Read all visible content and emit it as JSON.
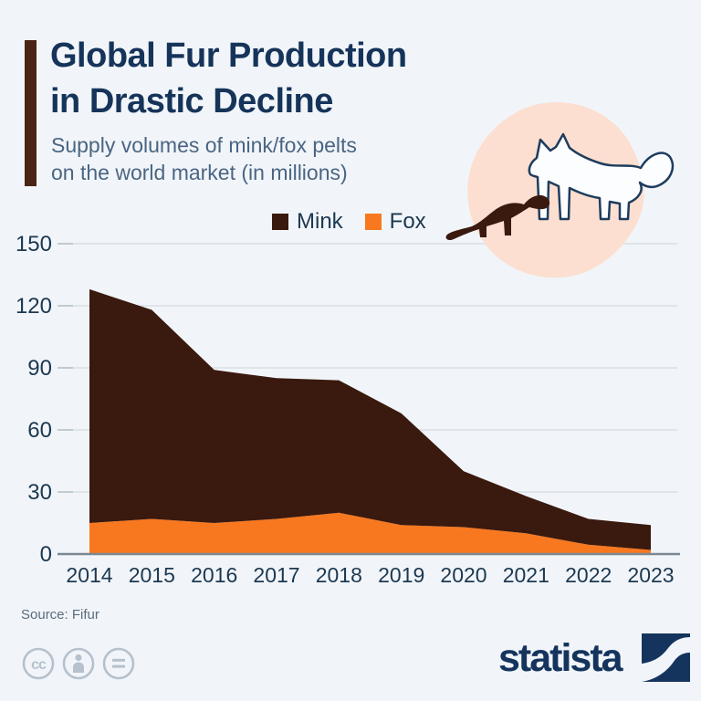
{
  "header": {
    "title_line1": "Global Fur Production",
    "title_line2": "in Drastic Decline",
    "subtitle_line1": "Supply volumes of mink/fox pelts",
    "subtitle_line2": "on the world market (in millions)"
  },
  "legend": {
    "items": [
      {
        "label": "Mink",
        "color": "#3a190e"
      },
      {
        "label": "Fox",
        "color": "#f8781f"
      }
    ]
  },
  "chart_data": {
    "type": "area",
    "stacked": true,
    "title": "Supply volumes of mink/fox pelts on the world market (in millions)",
    "x": [
      2014,
      2015,
      2016,
      2017,
      2018,
      2019,
      2020,
      2021,
      2022,
      2023
    ],
    "series": [
      {
        "name": "Fox",
        "color": "#f8781f",
        "values": [
          15,
          17,
          15,
          17,
          20,
          14,
          13,
          10,
          4.5,
          2
        ]
      },
      {
        "name": "Mink",
        "color": "#3a190e",
        "values": [
          113,
          101,
          74,
          68,
          64,
          54,
          27,
          18,
          12.5,
          12
        ]
      }
    ],
    "totals": [
      128,
      118,
      89,
      85,
      84,
      68,
      40,
      28,
      17,
      14
    ],
    "xlabel": "",
    "ylabel": "",
    "ylim": [
      0,
      150
    ],
    "yticks": [
      0,
      30,
      60,
      90,
      120,
      150
    ],
    "grid": true,
    "legend_position": "top"
  },
  "footer": {
    "source": "Source: Fifur",
    "brand": "statista",
    "license_icons": [
      "cc",
      "attribution",
      "equal"
    ]
  },
  "colors": {
    "background": "#f1f5f9",
    "title": "#16345a",
    "subtitle": "#4a6583",
    "accent_bar": "#4a2414",
    "gridline": "#d9dee3",
    "tick": "#b4bfc9",
    "axis": "#7b8894",
    "axis_label": "#1c3850",
    "blob": "#fcdfd0",
    "fox_outline": "#1e3c5e",
    "mink_fill": "#3a190e",
    "license": "#b6c1cd",
    "brand_navy": "#15345d"
  }
}
